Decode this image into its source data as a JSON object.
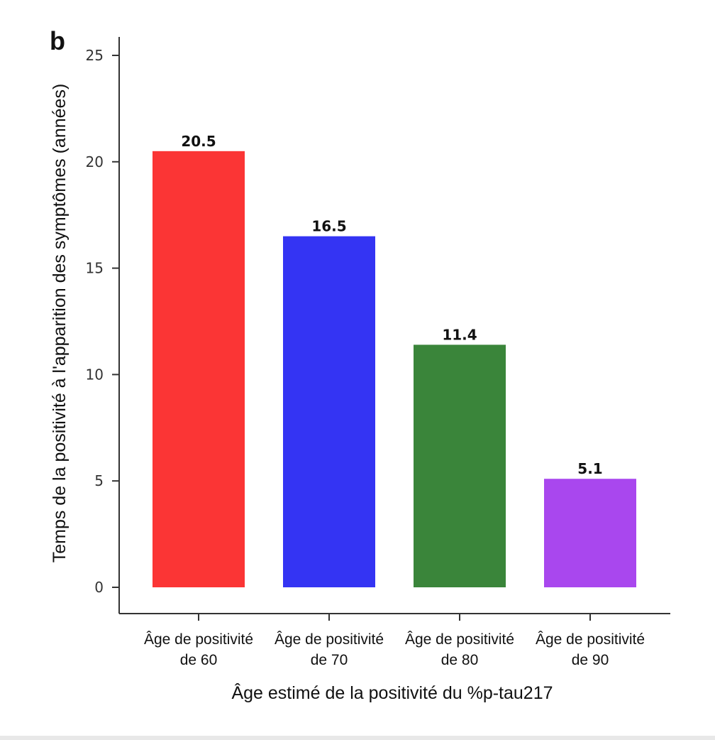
{
  "panel_label": "b",
  "chart_data": {
    "type": "bar",
    "categories": [
      [
        "Âge de positivité",
        "de 60"
      ],
      [
        "Âge de positivité",
        "de 70"
      ],
      [
        "Âge de positivité",
        "de 80"
      ],
      [
        "Âge de positivité",
        "de 90"
      ]
    ],
    "values": [
      20.5,
      16.5,
      11.4,
      5.1
    ],
    "value_labels": [
      "20.5",
      "16.5",
      "11.4",
      "5.1"
    ],
    "colors": [
      "#fb3535",
      "#3434f3",
      "#3a853a",
      "#a947ee"
    ],
    "xlabel": "Âge estimé de la positivité du %p-tau217",
    "ylabel": "Temps de la positivité à l'apparition des symptômes (années)",
    "ylim": [
      0,
      25
    ],
    "yticks": [
      0,
      5,
      10,
      15,
      20,
      25
    ],
    "grid": false,
    "legend": "none"
  }
}
